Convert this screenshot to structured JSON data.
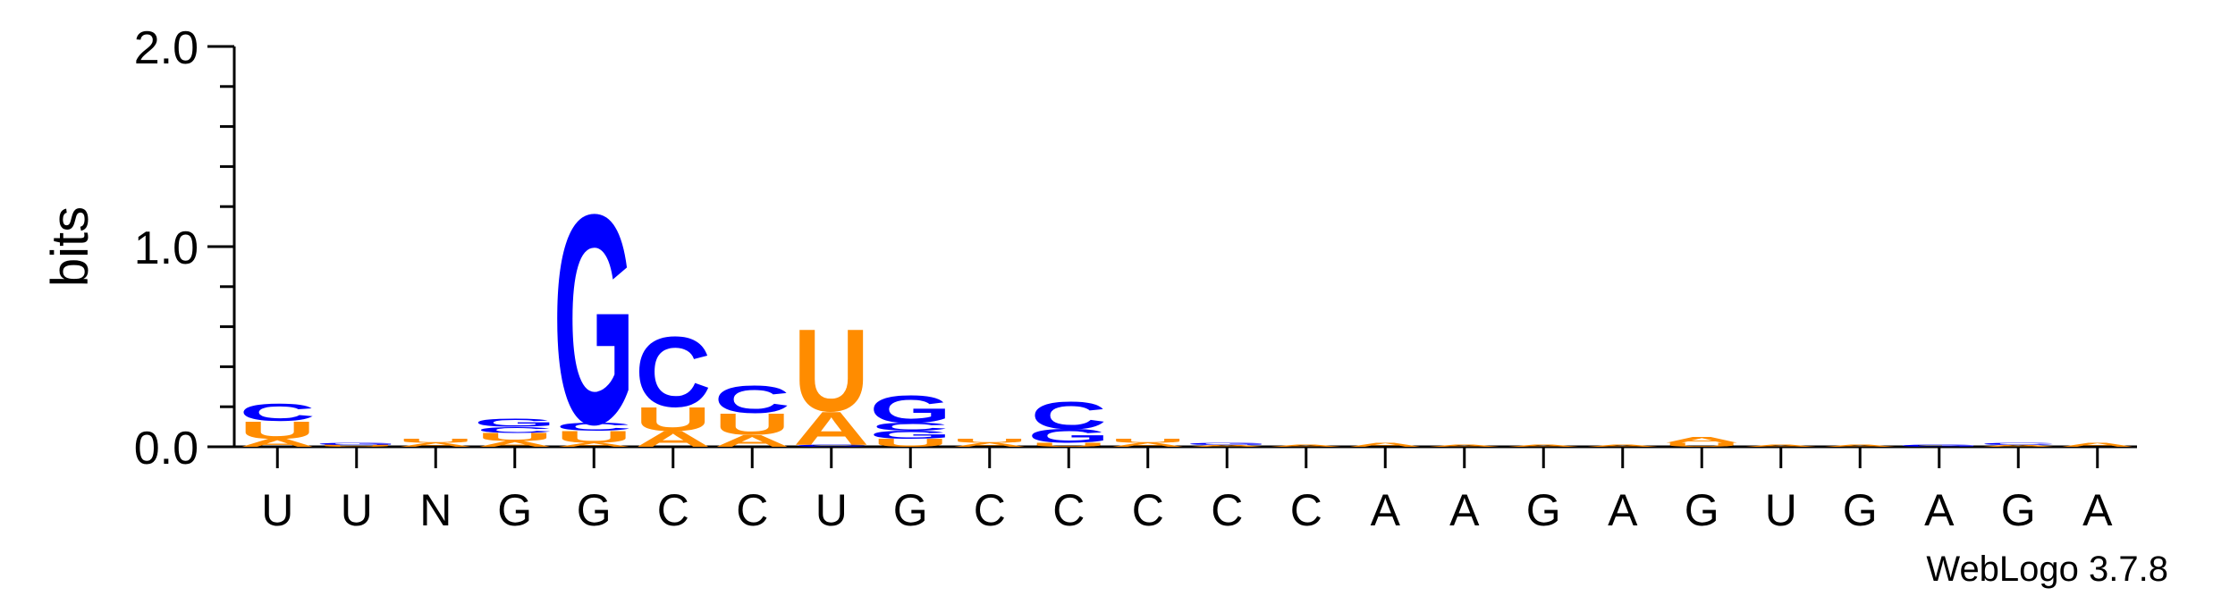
{
  "chart_data": {
    "type": "sequence-logo",
    "ylabel": "bits",
    "ylim": [
      0,
      2.0
    ],
    "y_ticks": [
      "0.0",
      "1.0",
      "2.0"
    ],
    "x_labels": [
      "U",
      "U",
      "N",
      "G",
      "G",
      "C",
      "C",
      "U",
      "G",
      "C",
      "C",
      "C",
      "C",
      "C",
      "A",
      "A",
      "G",
      "A",
      "G",
      "U",
      "G",
      "A",
      "G",
      "A"
    ],
    "credit": "WebLogo 3.7.8",
    "colors": {
      "A": "#ff8c00",
      "U": "#ff8c00",
      "G": "#0000ff",
      "C": "#0000ff"
    },
    "stacks": [
      [
        {
          "l": "A",
          "h": 0.04
        },
        {
          "l": "U",
          "h": 0.09
        },
        {
          "l": "C",
          "h": 0.09
        }
      ],
      [
        {
          "l": "U",
          "h": 0.01
        },
        {
          "l": "G",
          "h": 0.01
        }
      ],
      [
        {
          "l": "A",
          "h": 0.02
        },
        {
          "l": "U",
          "h": 0.02
        }
      ],
      [
        {
          "l": "A",
          "h": 0.03
        },
        {
          "l": "U",
          "h": 0.04
        },
        {
          "l": "C",
          "h": 0.03
        },
        {
          "l": "G",
          "h": 0.04
        }
      ],
      [
        {
          "l": "A",
          "h": 0.02
        },
        {
          "l": "U",
          "h": 0.06
        },
        {
          "l": "C",
          "h": 0.04
        },
        {
          "l": "G",
          "h": 1.07
        }
      ],
      [
        {
          "l": "A",
          "h": 0.08
        },
        {
          "l": "U",
          "h": 0.12
        },
        {
          "l": "C",
          "h": 0.36
        }
      ],
      [
        {
          "l": "A",
          "h": 0.06
        },
        {
          "l": "U",
          "h": 0.11
        },
        {
          "l": "C",
          "h": 0.14
        }
      ],
      [
        {
          "l": "C",
          "h": 0.01
        },
        {
          "l": "A",
          "h": 0.17
        },
        {
          "l": "U",
          "h": 0.42
        }
      ],
      [
        {
          "l": "U",
          "h": 0.04
        },
        {
          "l": "G",
          "h": 0.04
        },
        {
          "l": "C",
          "h": 0.04
        },
        {
          "l": "G",
          "h": 0.14
        }
      ],
      [
        {
          "l": "A",
          "h": 0.02
        },
        {
          "l": "U",
          "h": 0.02
        }
      ],
      [
        {
          "l": "U",
          "h": 0.02
        },
        {
          "l": "G",
          "h": 0.07
        },
        {
          "l": "C",
          "h": 0.14
        }
      ],
      [
        {
          "l": "A",
          "h": 0.02
        },
        {
          "l": "U",
          "h": 0.02
        }
      ],
      [
        {
          "l": "A",
          "h": 0.01
        },
        {
          "l": "G",
          "h": 0.01
        }
      ],
      [
        {
          "l": "A",
          "h": 0.01
        }
      ],
      [
        {
          "l": "A",
          "h": 0.02
        }
      ],
      [
        {
          "l": "A",
          "h": 0.01
        }
      ],
      [
        {
          "l": "A",
          "h": 0.01
        }
      ],
      [
        {
          "l": "A",
          "h": 0.01
        }
      ],
      [
        {
          "l": "U",
          "h": 0.02
        },
        {
          "l": "A",
          "h": 0.03
        }
      ],
      [
        {
          "l": "A",
          "h": 0.01
        }
      ],
      [
        {
          "l": "A",
          "h": 0.01
        }
      ],
      [
        {
          "l": "G",
          "h": 0.01
        }
      ],
      [
        {
          "l": "A",
          "h": 0.01
        },
        {
          "l": "C",
          "h": 0.01
        }
      ],
      [
        {
          "l": "A",
          "h": 0.02
        }
      ]
    ]
  }
}
